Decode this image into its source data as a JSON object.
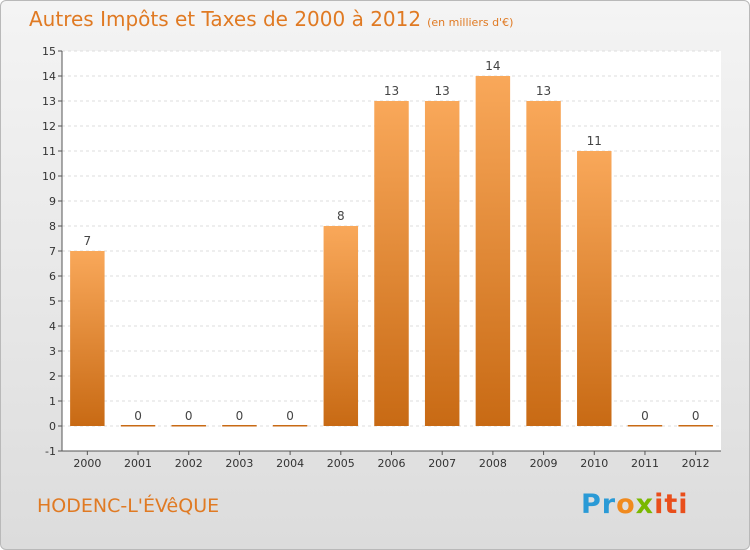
{
  "header": {
    "title": "Autres Impôts et Taxes de 2000 à 2012",
    "unit": "(en milliers d'€)"
  },
  "footer": {
    "city": "HODENC-L'ÉVêQUE",
    "logo": [
      "Pr",
      "o",
      "x",
      "iti"
    ]
  },
  "colors": {
    "bar_top": "#f9a85a",
    "bar_bottom": "#c86a14",
    "accent": "#e07a23"
  },
  "chart_data": {
    "type": "bar",
    "title": "Autres Impôts et Taxes de 2000 à 2012",
    "subtitle": "(en milliers d'€)",
    "categories": [
      "2000",
      "2001",
      "2002",
      "2003",
      "2004",
      "2005",
      "2006",
      "2007",
      "2008",
      "2009",
      "2010",
      "2011",
      "2012"
    ],
    "values": [
      7,
      0,
      0,
      0,
      0,
      8,
      13,
      13,
      14,
      13,
      11,
      0,
      0
    ],
    "ylim": [
      -1,
      15
    ],
    "yticks": [
      -1,
      0,
      1,
      2,
      3,
      4,
      5,
      6,
      7,
      8,
      9,
      10,
      11,
      12,
      13,
      14,
      15
    ],
    "grid": true
  }
}
